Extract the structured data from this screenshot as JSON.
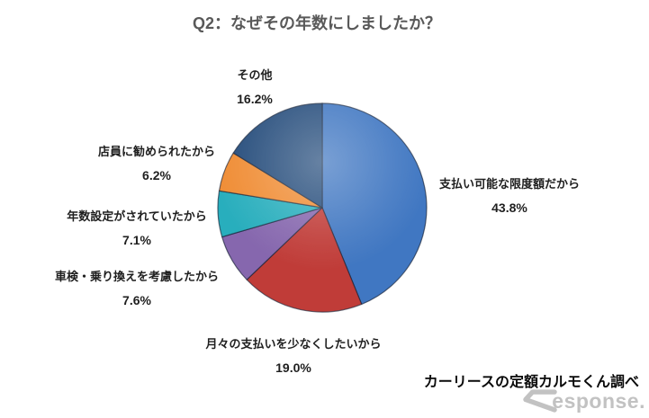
{
  "title": "Q2：なぜその年数にしましたか？",
  "source_note": "カーリースの定額カルモくん調べ",
  "watermark": {
    "brand": "Response.",
    "text": "esponse."
  },
  "chart_data": {
    "type": "pie",
    "title": "Q2：なぜその年数にしましたか？",
    "start_angle_deg": 0,
    "direction": "clockwise",
    "legend": "none",
    "label_position": "outside",
    "border_color": "rgba(22,32,52,0.65)",
    "slices": [
      {
        "label": "支払い可能な限度額だから",
        "value": 43.8,
        "display": "43.8%",
        "color": "#4077C2"
      },
      {
        "label": "月々の支払いを少なくしたいから",
        "value": 19.0,
        "display": "19.0%",
        "color": "#C03C38"
      },
      {
        "label": "車検・乗り換えを考慮したから",
        "value": 7.6,
        "display": "7.6%",
        "color": "#8667AE"
      },
      {
        "label": "年数設定がされていたから",
        "value": 7.1,
        "display": "7.1%",
        "color": "#28AEBD"
      },
      {
        "label": "店員に勧められたから",
        "value": 6.2,
        "display": "6.2%",
        "color": "#F08D35"
      },
      {
        "label": "その他",
        "value": 16.2,
        "display": "16.2%",
        "color": "#264D7C"
      }
    ]
  }
}
